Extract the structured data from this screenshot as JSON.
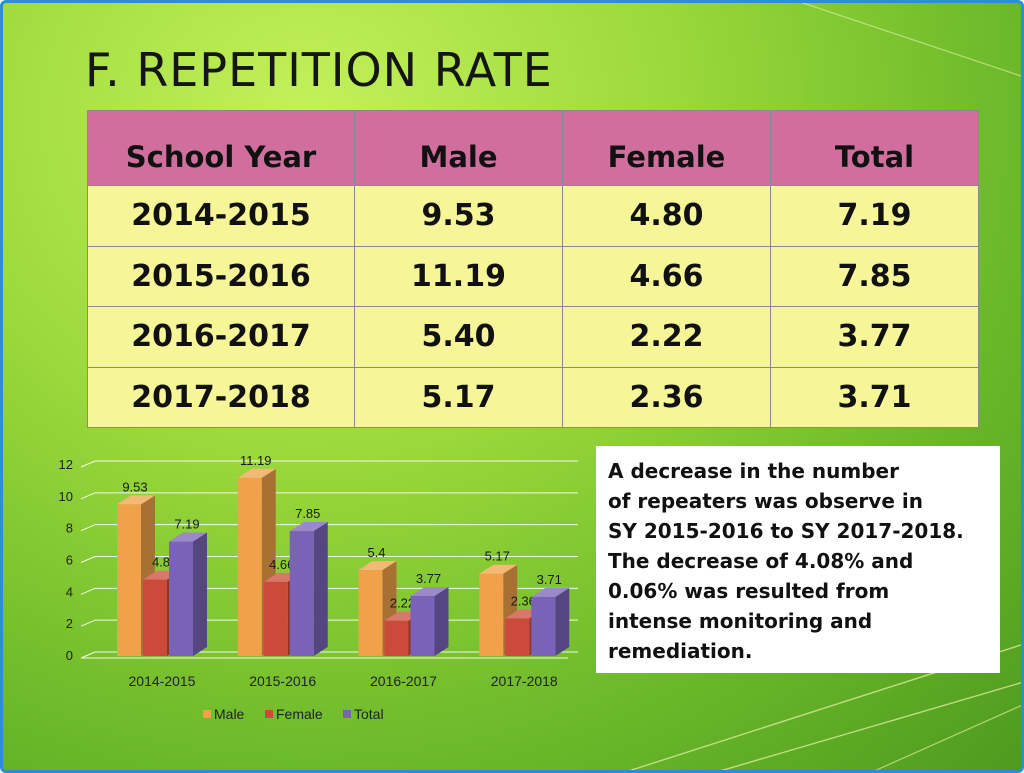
{
  "slide": {
    "title": "F.  REPETITION RATE",
    "colors": {
      "header_fill": "#d06f9e",
      "body_fill": "#f6f598",
      "frame": "#2a8fd8"
    }
  },
  "table": {
    "headers": [
      "School  Year",
      "Male",
      "Female",
      "Total"
    ],
    "rows": [
      [
        "2014-2015",
        "9.53",
        "4.80",
        "7.19"
      ],
      [
        "2015-2016",
        "11.19",
        "4.66",
        "7.85"
      ],
      [
        "2016-2017",
        "5.40",
        "2.22",
        "3.77"
      ],
      [
        "2017-2018",
        "5.17",
        "2.36",
        "3.71"
      ]
    ]
  },
  "note": {
    "text": "A decrease in the number\nof repeaters was observe in\nSY 2015-2016 to SY 2017-2018.\nThe decrease of  4.08% and\n0.06%  was resulted from\nintense monitoring and\nremediation."
  },
  "chart_data": {
    "type": "bar",
    "style": "3d-clustered",
    "categories": [
      "2014-2015",
      "2015-2016",
      "2016-2017",
      "2017-2018"
    ],
    "series": [
      {
        "name": "Male",
        "values": [
          9.53,
          11.19,
          5.4,
          5.17
        ],
        "labels": [
          "9.53",
          "11.19",
          "5.4",
          "5.17"
        ],
        "color": "#f0a14a"
      },
      {
        "name": "Female",
        "values": [
          4.8,
          4.66,
          2.22,
          2.36
        ],
        "labels": [
          "4.8",
          "4.66",
          "2.22",
          "2.36"
        ],
        "color": "#cc4a3a"
      },
      {
        "name": "Total",
        "values": [
          7.19,
          7.85,
          3.77,
          3.71
        ],
        "labels": [
          "7.19",
          "7.85",
          "3.77",
          "3.71"
        ],
        "color": "#7a62b8"
      }
    ],
    "yticks": [
      0,
      2,
      4,
      6,
      8,
      10,
      12
    ],
    "ylim": [
      0,
      12
    ],
    "grid": true,
    "legend": "bottom",
    "title": "",
    "xlabel": "",
    "ylabel": ""
  }
}
